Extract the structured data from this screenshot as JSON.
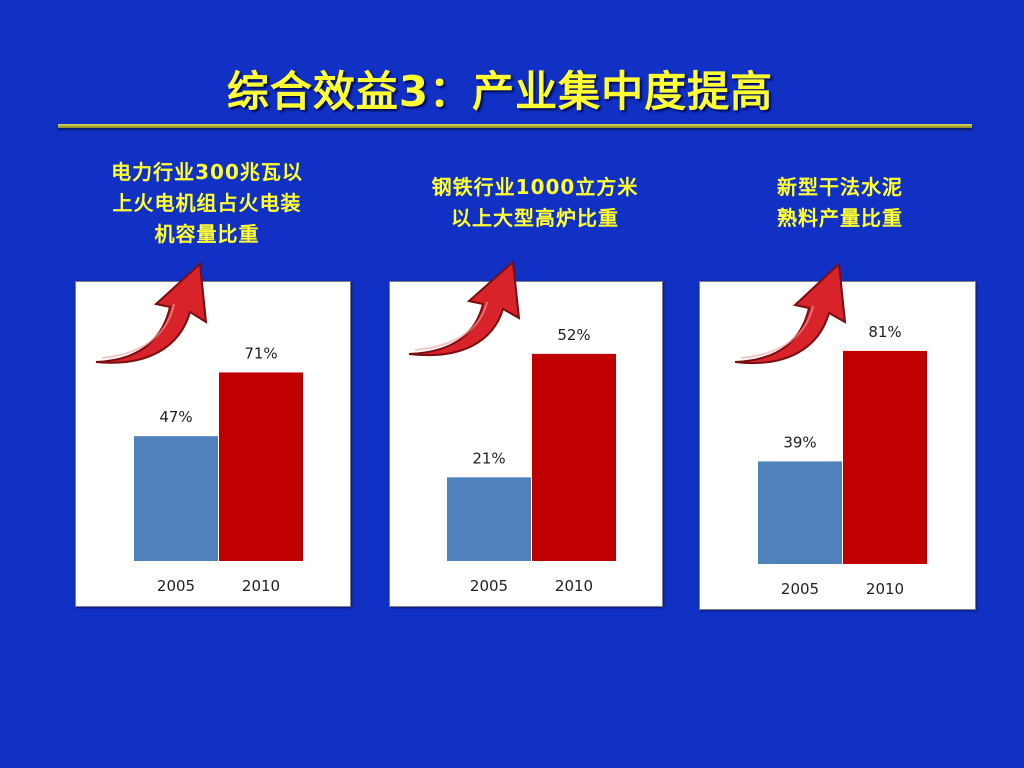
{
  "title": "综合效益3：产业集中度提高",
  "colors": {
    "background": "#1130c4",
    "title_text": "#ffff33",
    "bar_2005": "#4f81bd",
    "bar_2010": "#c00000",
    "arrow": "#d9232a"
  },
  "panels": [
    {
      "caption_lines": [
        "电力行业300兆瓦以",
        "上火电机组占火电装",
        "机容量比重"
      ],
      "arrow_icon": "red-curved-up-arrow"
    },
    {
      "caption_lines": [
        "钢铁行业1000立方米",
        "以上大型高炉比重"
      ],
      "arrow_icon": "red-curved-up-arrow"
    },
    {
      "caption_lines": [
        "新型干法水泥",
        "熟料产量比重"
      ],
      "arrow_icon": "red-curved-up-arrow"
    }
  ],
  "chart_data": [
    {
      "type": "bar",
      "title": "",
      "categories": [
        "2005",
        "2010"
      ],
      "values": [
        47,
        71
      ],
      "value_labels": [
        "47%",
        "71%"
      ],
      "ylim": [
        0,
        90
      ],
      "bar_colors": [
        "#4f81bd",
        "#c00000"
      ],
      "grid": false,
      "legend": "none"
    },
    {
      "type": "bar",
      "title": "",
      "categories": [
        "2005",
        "2010"
      ],
      "values": [
        21,
        52
      ],
      "value_labels": [
        "21%",
        "52%"
      ],
      "ylim": [
        0,
        60
      ],
      "bar_colors": [
        "#4f81bd",
        "#c00000"
      ],
      "grid": false,
      "legend": "none"
    },
    {
      "type": "bar",
      "title": "",
      "categories": [
        "2005",
        "2010"
      ],
      "values": [
        39,
        81
      ],
      "value_labels": [
        "39%",
        "81%"
      ],
      "ylim": [
        0,
        92
      ],
      "bar_colors": [
        "#4f81bd",
        "#c00000"
      ],
      "grid": false,
      "legend": "none"
    }
  ]
}
